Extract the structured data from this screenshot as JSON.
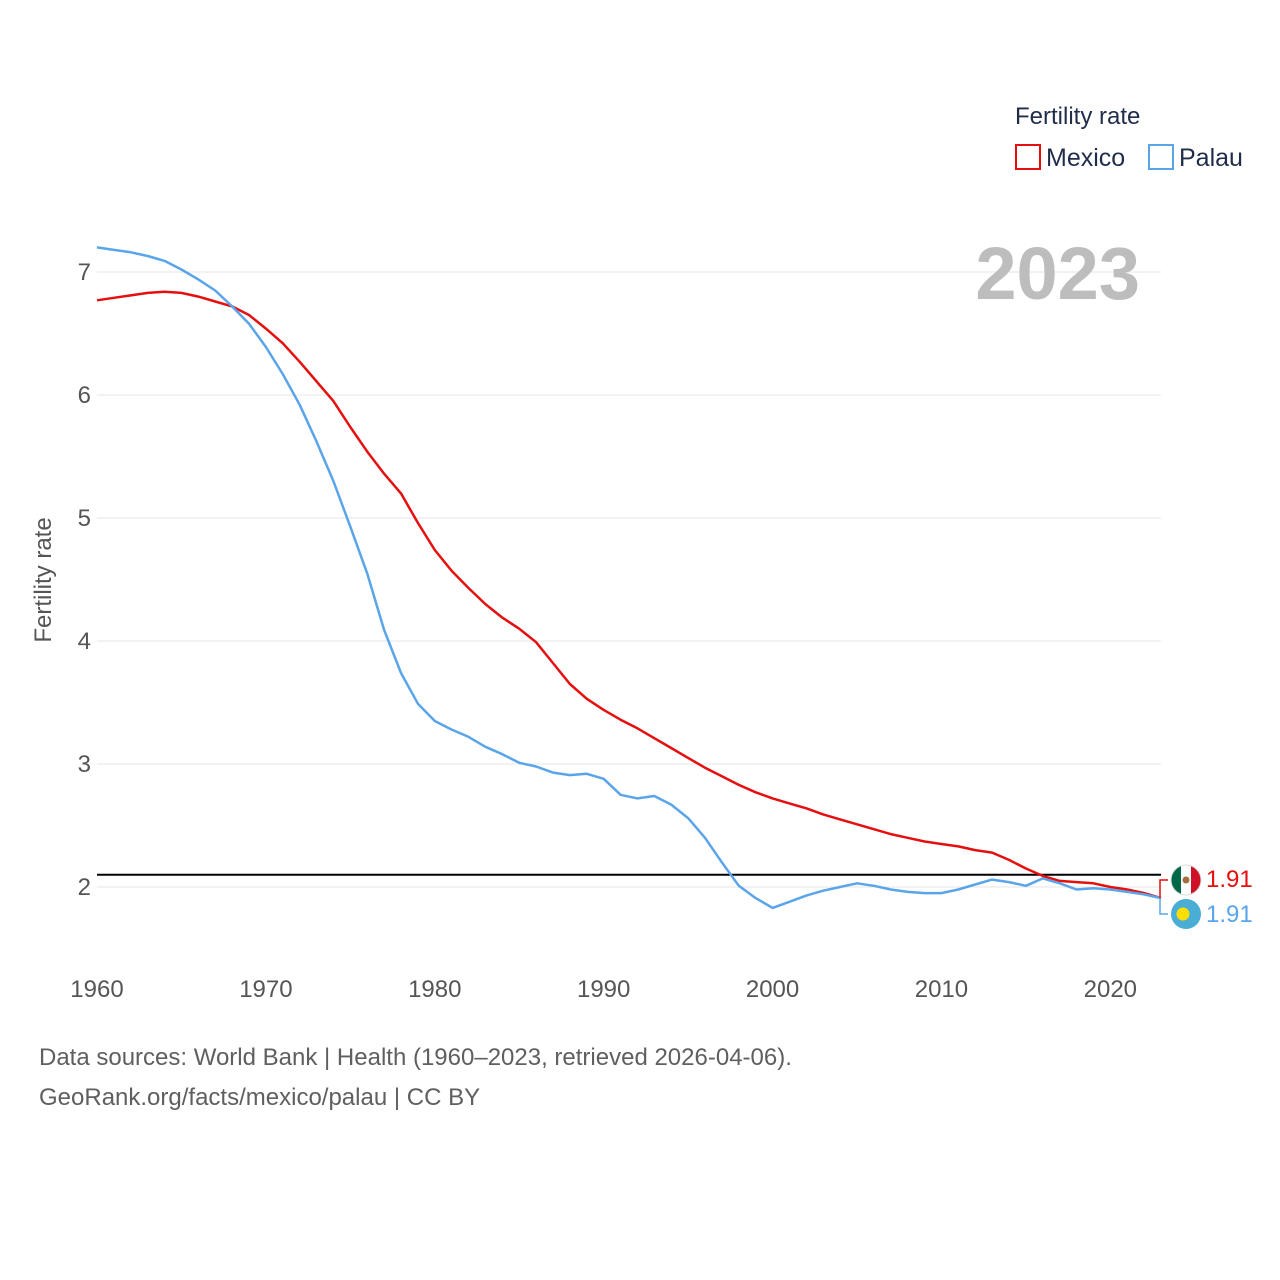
{
  "legend": {
    "title": "Fertility rate",
    "items": [
      "Mexico",
      "Palau"
    ]
  },
  "year_label": "2023",
  "end_labels": {
    "mexico": "1.91",
    "palau": "1.91"
  },
  "footer": {
    "line1": "Data sources: World Bank | Health (1960–2023, retrieved 2026-04-06).",
    "line2": "GeoRank.org/facts/mexico/palau | CC BY"
  },
  "colors": {
    "mexico": "#e60f0f",
    "palau": "#5aa5ea",
    "reference": "#000000",
    "grid": "#e6e6e6"
  },
  "icons": [
    "mexico-flag-icon",
    "palau-flag-icon"
  ],
  "chart_data": {
    "type": "line",
    "title": "",
    "xlabel": "",
    "ylabel": "Fertility rate",
    "xlim": [
      1960,
      2023
    ],
    "ylim": [
      1.5,
      7.3
    ],
    "xticks": [
      1960,
      1970,
      1980,
      1990,
      2000,
      2010,
      2020
    ],
    "yticks": [
      2,
      3,
      4,
      5,
      6,
      7
    ],
    "reference_line": 2.1,
    "series": [
      {
        "name": "Mexico",
        "x": [
          1960,
          1961,
          1962,
          1963,
          1964,
          1965,
          1966,
          1967,
          1968,
          1969,
          1970,
          1971,
          1972,
          1973,
          1974,
          1975,
          1976,
          1977,
          1978,
          1979,
          1980,
          1981,
          1982,
          1983,
          1984,
          1985,
          1986,
          1987,
          1988,
          1989,
          1990,
          1991,
          1992,
          1993,
          1994,
          1995,
          1996,
          1997,
          1998,
          1999,
          2000,
          2001,
          2002,
          2003,
          2004,
          2005,
          2006,
          2007,
          2008,
          2009,
          2010,
          2011,
          2012,
          2013,
          2014,
          2015,
          2016,
          2017,
          2018,
          2019,
          2020,
          2021,
          2022,
          2023
        ],
        "values": [
          6.77,
          6.79,
          6.81,
          6.83,
          6.84,
          6.83,
          6.8,
          6.76,
          6.72,
          6.65,
          6.54,
          6.42,
          6.27,
          6.11,
          5.95,
          5.74,
          5.54,
          5.36,
          5.2,
          4.96,
          4.74,
          4.57,
          4.43,
          4.3,
          4.19,
          4.1,
          3.99,
          3.82,
          3.65,
          3.53,
          3.44,
          3.36,
          3.29,
          3.21,
          3.13,
          3.05,
          2.97,
          2.9,
          2.83,
          2.77,
          2.72,
          2.68,
          2.64,
          2.59,
          2.55,
          2.51,
          2.47,
          2.43,
          2.4,
          2.37,
          2.35,
          2.33,
          2.3,
          2.28,
          2.22,
          2.15,
          2.09,
          2.05,
          2.04,
          2.03,
          2.0,
          1.98,
          1.95,
          1.91
        ]
      },
      {
        "name": "Palau",
        "x": [
          1960,
          1961,
          1962,
          1963,
          1964,
          1965,
          1966,
          1967,
          1968,
          1969,
          1970,
          1971,
          1972,
          1973,
          1974,
          1975,
          1976,
          1977,
          1978,
          1979,
          1980,
          1981,
          1982,
          1983,
          1984,
          1985,
          1986,
          1987,
          1988,
          1989,
          1990,
          1991,
          1992,
          1993,
          1994,
          1995,
          1996,
          1997,
          1998,
          1999,
          2000,
          2001,
          2002,
          2003,
          2004,
          2005,
          2006,
          2007,
          2008,
          2009,
          2010,
          2011,
          2012,
          2013,
          2014,
          2015,
          2016,
          2017,
          2018,
          2019,
          2020,
          2021,
          2022,
          2023
        ],
        "values": [
          7.2,
          7.18,
          7.16,
          7.13,
          7.09,
          7.02,
          6.94,
          6.85,
          6.72,
          6.58,
          6.39,
          6.17,
          5.92,
          5.62,
          5.3,
          4.93,
          4.55,
          4.09,
          3.74,
          3.49,
          3.35,
          3.28,
          3.22,
          3.14,
          3.08,
          3.01,
          2.98,
          2.93,
          2.91,
          2.92,
          2.88,
          2.75,
          2.72,
          2.74,
          2.67,
          2.56,
          2.4,
          2.2,
          2.01,
          1.91,
          1.83,
          1.88,
          1.93,
          1.97,
          2.0,
          2.03,
          2.01,
          1.98,
          1.96,
          1.95,
          1.95,
          1.98,
          2.02,
          2.06,
          2.04,
          2.01,
          2.07,
          2.03,
          1.98,
          1.99,
          1.98,
          1.96,
          1.94,
          1.91
        ]
      }
    ]
  }
}
